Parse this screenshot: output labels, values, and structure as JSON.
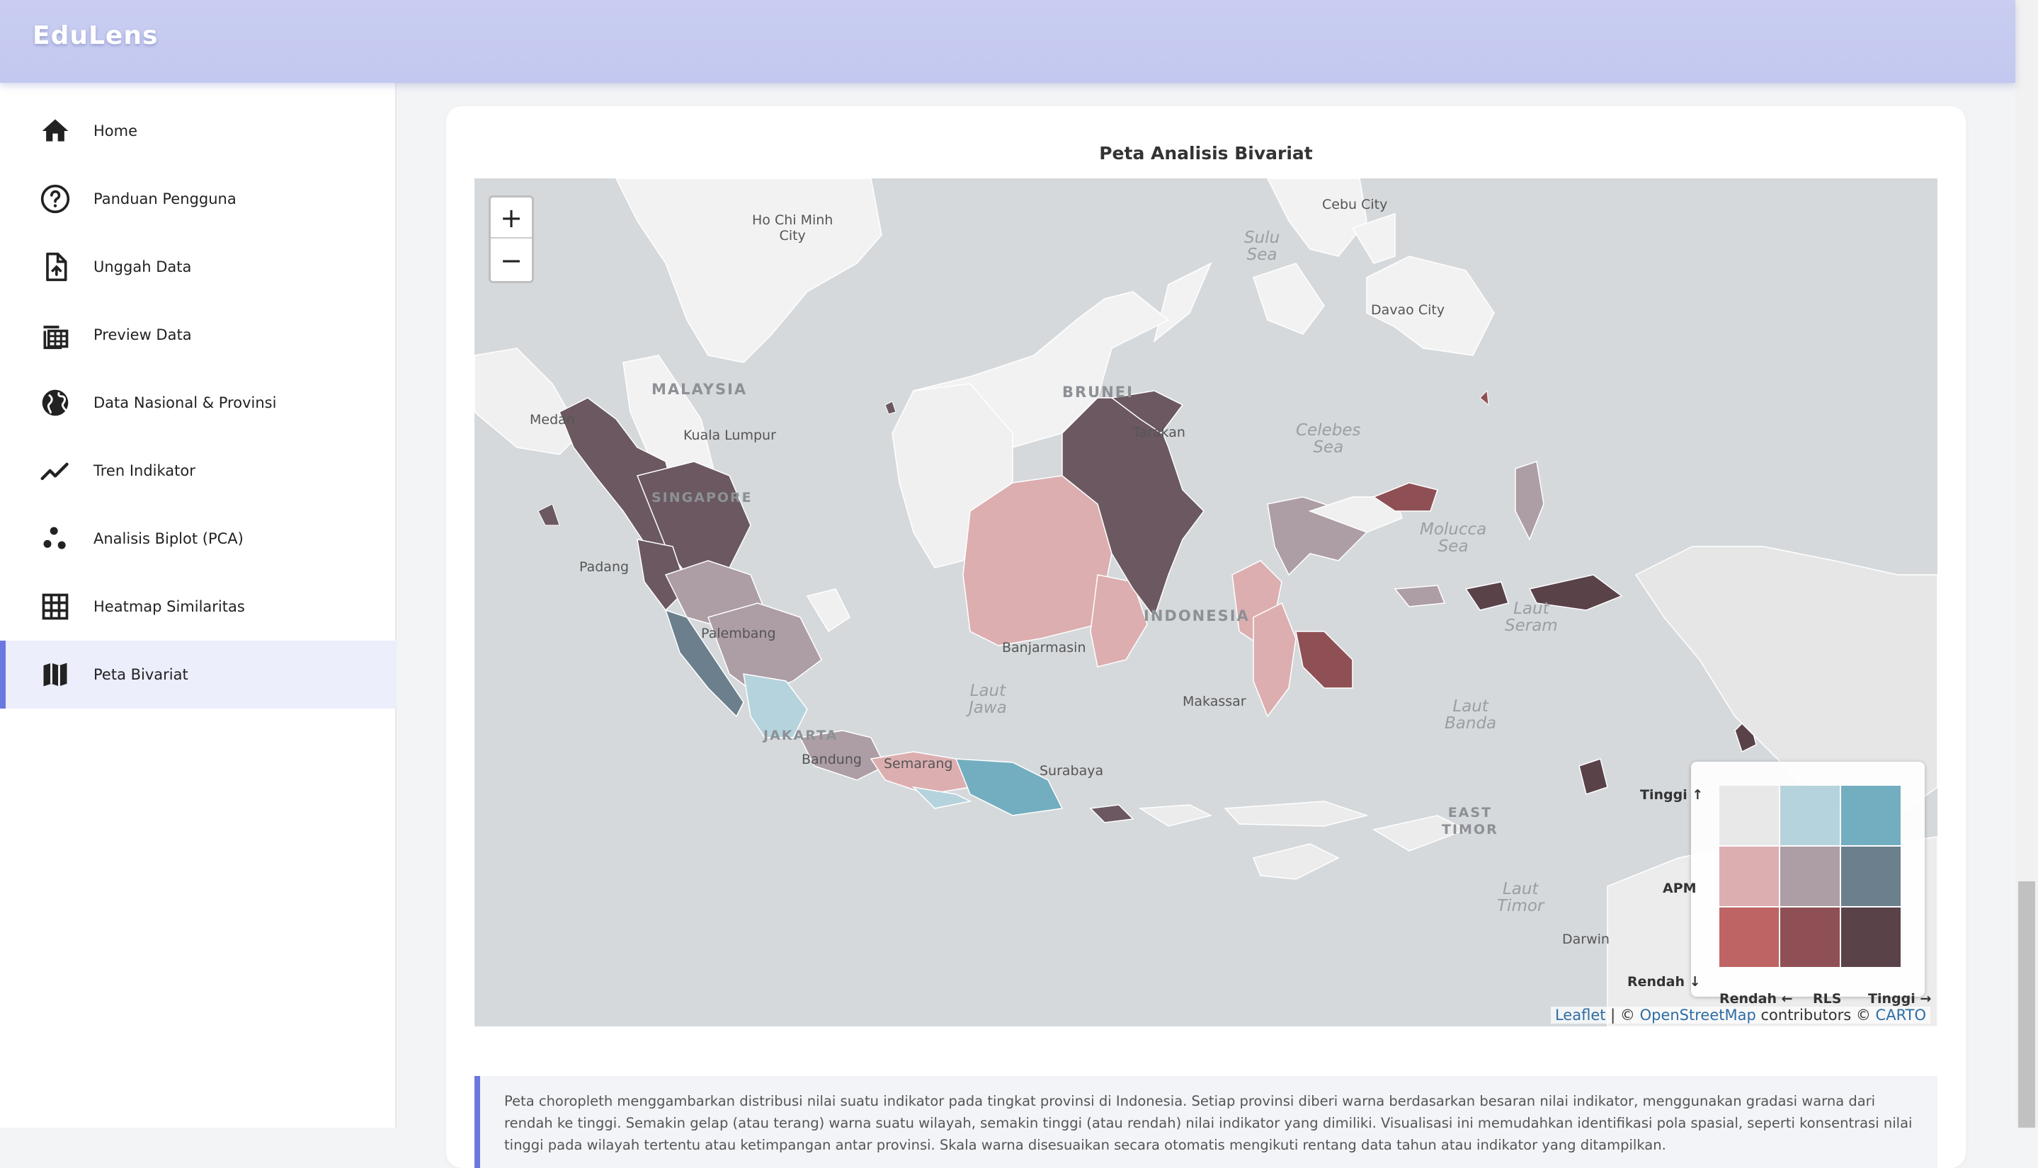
{
  "app": {
    "brand": "EduLens"
  },
  "sidebar": {
    "items": [
      {
        "label": "Home",
        "icon": "home-icon"
      },
      {
        "label": "Panduan Pengguna",
        "icon": "help-circle-icon"
      },
      {
        "label": "Unggah Data",
        "icon": "file-upload-icon"
      },
      {
        "label": "Preview Data",
        "icon": "table-preview-icon"
      },
      {
        "label": "Data Nasional & Provinsi",
        "icon": "globe-icon"
      },
      {
        "label": "Tren Indikator",
        "icon": "trend-line-icon"
      },
      {
        "label": "Analisis Biplot (PCA)",
        "icon": "scatter-dots-icon"
      },
      {
        "label": "Heatmap Similaritas",
        "icon": "grid-icon"
      },
      {
        "label": "Peta Bivariat",
        "icon": "map-icon"
      }
    ],
    "active": "Peta Bivariat"
  },
  "main": {
    "card_title": "Peta Analisis Bivariat",
    "description": "Peta choropleth menggambarkan distribusi nilai suatu indikator pada tingkat provinsi di Indonesia. Setiap provinsi diberi warna berdasarkan besaran nilai indikator, menggunakan gradasi warna dari rendah ke tinggi. Semakin gelap (atau terang) warna suatu wilayah, semakin tinggi (atau rendah) nilai indikator yang dimiliki. Visualisasi ini memudahkan identifikasi pola spasial, seperti konsentrasi nilai tinggi pada wilayah tertentu atau ketimpangan antar provinsi. Skala warna disesuaikan secara otomatis mengikuti rentang data tahun atau indikator yang ditampilkan."
  },
  "map": {
    "zoom_in": "+",
    "zoom_out": "−",
    "labels": {
      "ho_chi_minh": "Ho Chi Minh\nCity",
      "cebu": "Cebu City",
      "sulu_sea": "Sulu\nSea",
      "davao": "Davao City",
      "malaysia": "MALAYSIA",
      "brunei": "BRUNEI",
      "celebes_sea": "Celebes\nSea",
      "kuala_lumpur": "Kuala Lumpur",
      "medan": "Medan",
      "tarakan": "Tarakan",
      "singapore": "SINGAPORE",
      "molucca_sea": "Molucca\nSea",
      "padang": "Padang",
      "palembang": "Palembang",
      "indonesia": "INDONESIA",
      "banjarmasin": "Banjarmasin",
      "laut_seram": "Laut\nSeram",
      "laut_jawa": "Laut\nJawa",
      "makassar": "Makassar",
      "laut_banda": "Laut\nBanda",
      "jakarta": "JAKARTA",
      "bandung": "Bandung",
      "semarang": "Semarang",
      "surabaya": "Surabaya",
      "east_timor": "EAST\nTIMOR",
      "laut_timor": "Laut\nTimor",
      "darwin": "Darwin"
    },
    "attribution": {
      "leaflet": "Leaflet",
      "sep": " | © ",
      "osm": "OpenStreetMap",
      "contrib": " contributors © ",
      "carto": "CARTO"
    }
  },
  "legend": {
    "y_high": "Tinggi ↑",
    "y_var": "APM",
    "y_low": "Rendah ↓",
    "x_low": "Rendah ←",
    "x_var": "RLS",
    "x_high": "Tinggi →",
    "grid_colors": [
      [
        "#e8e8e8",
        "#b5d3dd",
        "#73aec0"
      ],
      [
        "#dcaeb0",
        "#ad9da4",
        "#6b7f8c"
      ],
      [
        "#be6464",
        "#8f5055",
        "#5a4249"
      ]
    ]
  },
  "colors": {
    "accent": "#6b78e0",
    "topbar": "#c5caf0",
    "sea": "#d5d9dc",
    "land_outside": "#f2f2f2"
  }
}
